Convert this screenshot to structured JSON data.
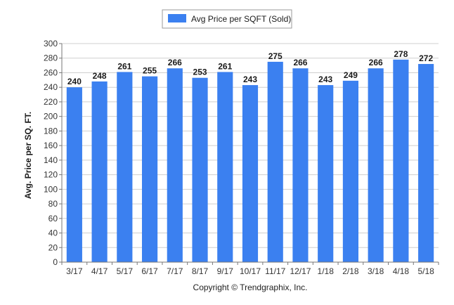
{
  "chart_data": {
    "type": "bar",
    "categories": [
      "3/17",
      "4/17",
      "5/17",
      "6/17",
      "7/17",
      "8/17",
      "9/17",
      "10/17",
      "11/17",
      "12/17",
      "1/18",
      "2/18",
      "3/18",
      "4/18",
      "5/18"
    ],
    "series": [
      {
        "name": "Avg Price per SQFT (Sold)",
        "values": [
          240,
          248,
          261,
          255,
          266,
          253,
          261,
          243,
          275,
          266,
          243,
          249,
          266,
          278,
          272
        ],
        "color": "#3b80f0"
      }
    ],
    "xlabel": "",
    "ylabel": "Avg. Price per SQ. FT.",
    "ylim": [
      0,
      300
    ],
    "yticks": [
      0,
      20,
      40,
      60,
      80,
      100,
      120,
      140,
      160,
      180,
      200,
      220,
      240,
      260,
      280,
      300
    ],
    "grid": true,
    "legend": "top-center",
    "data_labels": true
  },
  "footer": {
    "copyright": "Copyright © Trendgraphix, Inc."
  },
  "colors": {
    "bar": "#3b80f0",
    "grid": "#cfcfcf",
    "axis": "#777777"
  }
}
